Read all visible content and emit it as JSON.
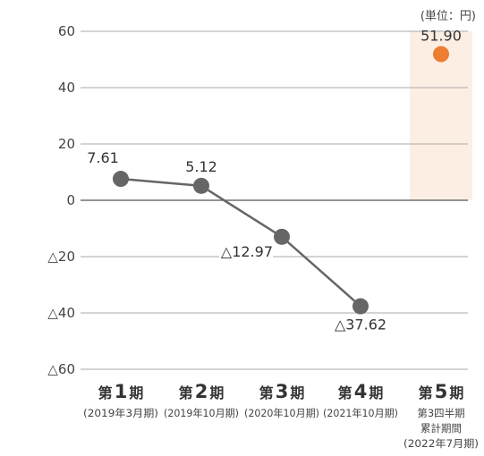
{
  "chart_data": {
    "type": "line",
    "unit_note": "(単位：円)",
    "ylim": [
      -60,
      60
    ],
    "y_ticks": [
      {
        "value": 60,
        "label": "60"
      },
      {
        "value": 40,
        "label": "40"
      },
      {
        "value": 20,
        "label": "20"
      },
      {
        "value": 0,
        "label": "0"
      },
      {
        "value": -20,
        "label": "△20"
      },
      {
        "value": -40,
        "label": "△40"
      },
      {
        "value": -60,
        "label": "△60"
      }
    ],
    "categories": [
      {
        "main_pre": "第",
        "main_num": "1",
        "main_post": "期",
        "sub": [
          "(2019年3月期)"
        ]
      },
      {
        "main_pre": "第",
        "main_num": "2",
        "main_post": "期",
        "sub": [
          "(2019年10月期)"
        ]
      },
      {
        "main_pre": "第",
        "main_num": "3",
        "main_post": "期",
        "sub": [
          "(2020年10月期)"
        ]
      },
      {
        "main_pre": "第",
        "main_num": "4",
        "main_post": "期",
        "sub": [
          "(2021年10月期)"
        ]
      },
      {
        "main_pre": "第",
        "main_num": "5",
        "main_post": "期",
        "sub": [
          "第3四半期",
          "累計期間",
          "(2022年7月期)"
        ]
      }
    ],
    "series": [
      {
        "values": [
          7.61,
          5.12,
          -12.97,
          -37.62,
          null
        ],
        "labels": [
          "7.61",
          "5.12",
          "△12.97",
          "△37.62",
          null
        ],
        "color": "#666666"
      },
      {
        "values": [
          null,
          null,
          null,
          null,
          51.9
        ],
        "labels": [
          null,
          null,
          null,
          null,
          "51.90"
        ],
        "color": "#ed7d31"
      }
    ],
    "highlight": {
      "category_index": 4,
      "color": "#fdeee3"
    },
    "grid": true
  }
}
